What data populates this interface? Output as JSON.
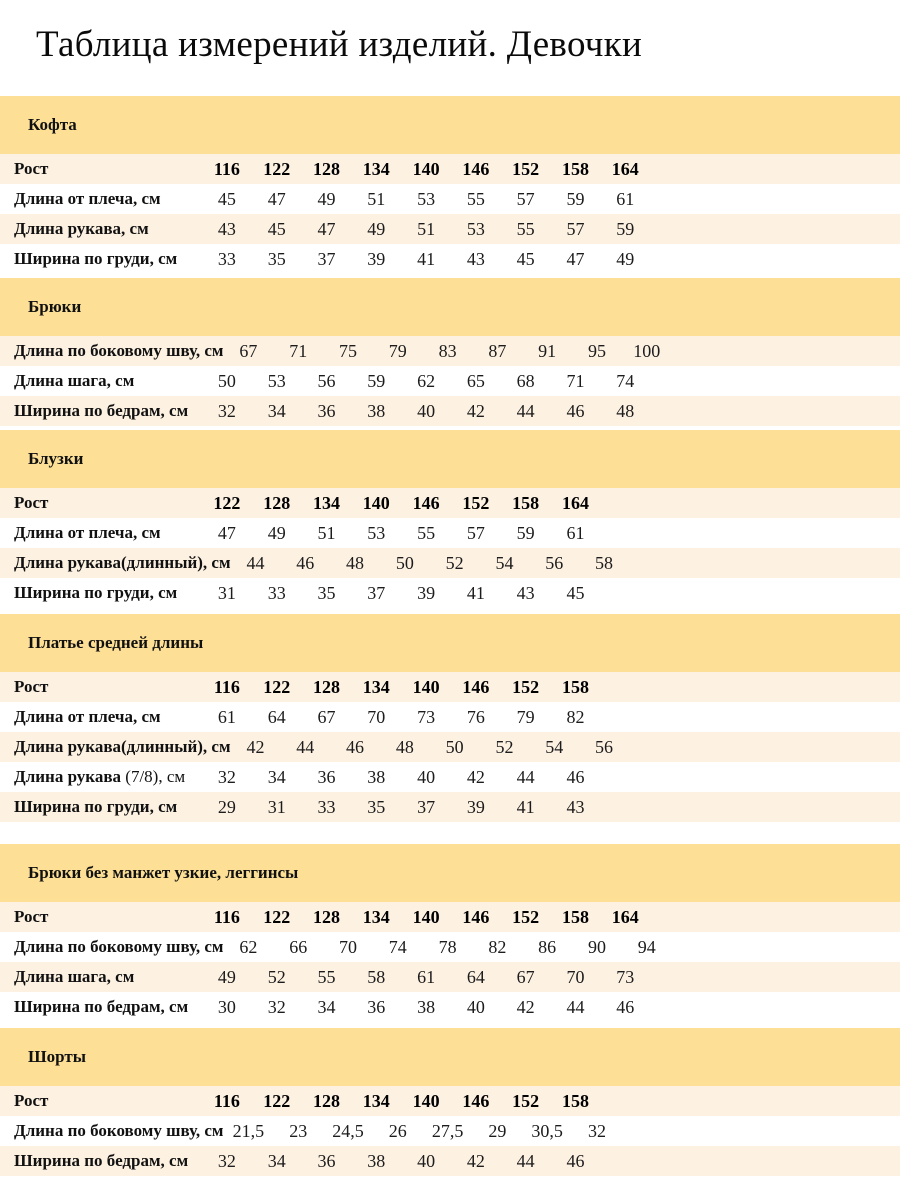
{
  "page_title": "Таблица измерений изделий. Девочки",
  "colors": {
    "section_band": "#fde096",
    "row_alt": "#fdf1e2",
    "row_white": "#ffffff",
    "text": "#000000"
  },
  "sections": [
    {
      "title": "Кофта",
      "rows": [
        {
          "label": "Рост",
          "header": true,
          "values": [
            "116",
            "122",
            "128",
            "134",
            "140",
            "146",
            "152",
            "158",
            "164"
          ]
        },
        {
          "label": "Длина от плеча, см",
          "values": [
            "45",
            "47",
            "49",
            "51",
            "53",
            "55",
            "57",
            "59",
            "61"
          ]
        },
        {
          "label": "Длина рукава, см",
          "values": [
            "43",
            "45",
            "47",
            "49",
            "51",
            "53",
            "55",
            "57",
            "59"
          ]
        },
        {
          "label": "Ширина по груди, см",
          "values": [
            "33",
            "35",
            "37",
            "39",
            "41",
            "43",
            "45",
            "47",
            "49"
          ]
        }
      ]
    },
    {
      "title": "Брюки",
      "rows": [
        {
          "label": "Длина по боковому шву, см",
          "values": [
            "67",
            "71",
            "75",
            "79",
            "83",
            "87",
            "91",
            "95",
            "100"
          ]
        },
        {
          "label": "Длина шага, см",
          "values": [
            "50",
            "53",
            "56",
            "59",
            "62",
            "65",
            "68",
            "71",
            "74"
          ]
        },
        {
          "label": "Ширина по бедрам, см",
          "values": [
            "32",
            "34",
            "36",
            "38",
            "40",
            "42",
            "44",
            "46",
            "48"
          ]
        }
      ]
    },
    {
      "title": "Блузки",
      "rows": [
        {
          "label": "Рост",
          "header": true,
          "values": [
            "122",
            "128",
            "134",
            "140",
            "146",
            "152",
            "158",
            "164"
          ]
        },
        {
          "label": "Длина от плеча, см",
          "values": [
            "47",
            "49",
            "51",
            "53",
            "55",
            "57",
            "59",
            "61"
          ]
        },
        {
          "label": "Длина рукава(длинный), см",
          "values": [
            "44",
            "46",
            "48",
            "50",
            "52",
            "54",
            "56",
            "58"
          ]
        },
        {
          "label": "Ширина по груди, см",
          "values": [
            "31",
            "33",
            "35",
            "37",
            "39",
            "41",
            "43",
            "45"
          ]
        }
      ]
    },
    {
      "title": "Платье средней длины",
      "rows": [
        {
          "label": "Рост",
          "header": true,
          "values": [
            "116",
            "122",
            "128",
            "134",
            "140",
            "146",
            "152",
            "158"
          ]
        },
        {
          "label": "Длина от плеча, см",
          "values": [
            "61",
            "64",
            "67",
            "70",
            "73",
            "76",
            "79",
            "82"
          ]
        },
        {
          "label": "Длина рукава(длинный), см",
          "values": [
            "42",
            "44",
            "46",
            "48",
            "50",
            "52",
            "54",
            "56"
          ]
        },
        {
          "label": "Длина рукава",
          "label_suffix": " (7/8), см",
          "values": [
            "32",
            "34",
            "36",
            "38",
            "40",
            "42",
            "44",
            "46"
          ]
        },
        {
          "label": "Ширина по груди, см",
          "values": [
            "29",
            "31",
            "33",
            "35",
            "37",
            "39",
            "41",
            "43"
          ]
        }
      ]
    },
    {
      "title": "Брюки без манжет узкие, леггинсы",
      "rows": [
        {
          "label": "Рост",
          "header": true,
          "values": [
            "116",
            "122",
            "128",
            "134",
            "140",
            "146",
            "152",
            "158",
            "164"
          ]
        },
        {
          "label": "Длина по боковому шву, см",
          "values": [
            "62",
            "66",
            "70",
            "74",
            "78",
            "82",
            "86",
            "90",
            "94"
          ]
        },
        {
          "label": "Длина шага, см",
          "values": [
            "49",
            "52",
            "55",
            "58",
            "61",
            "64",
            "67",
            "70",
            "73"
          ]
        },
        {
          "label": "Ширина по бедрам, см",
          "values": [
            "30",
            "32",
            "34",
            "36",
            "38",
            "40",
            "42",
            "44",
            "46"
          ]
        }
      ]
    },
    {
      "title": "Шорты",
      "rows": [
        {
          "label": "Рост",
          "header": true,
          "values": [
            "116",
            "122",
            "128",
            "134",
            "140",
            "146",
            "152",
            "158"
          ]
        },
        {
          "label": "Длина по боковому шву, см",
          "values": [
            "21,5",
            "23",
            "24,5",
            "26",
            "27,5",
            "29",
            "30,5",
            "32"
          ]
        },
        {
          "label": "Ширина по бедрам, см",
          "values": [
            "32",
            "34",
            "36",
            "38",
            "40",
            "42",
            "44",
            "46"
          ]
        }
      ]
    }
  ]
}
